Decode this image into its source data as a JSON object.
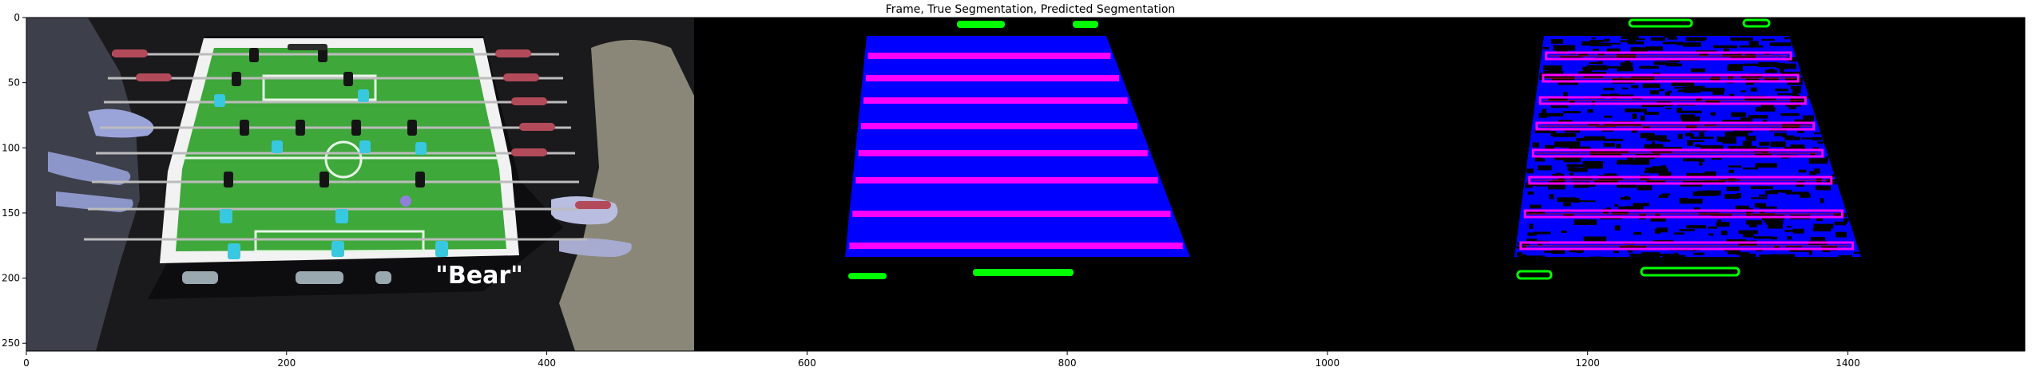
{
  "figure": {
    "title": "Frame, True Segmentation, Predicted Segmentation",
    "x_ticks": [
      0,
      200,
      400,
      600,
      800,
      1000,
      1200,
      1400
    ],
    "y_ticks": [
      0,
      50,
      100,
      150,
      200,
      250
    ],
    "x_range": [
      0,
      1536
    ],
    "y_range": [
      0,
      256
    ],
    "panels": {
      "frame": {
        "label_text": "\"Bear\""
      }
    },
    "colors": {
      "background": "#000000",
      "table_class": "#0000ff",
      "rod_class": "#ff00ff",
      "ball_class": "#00ff00",
      "field": "#3ea83a",
      "frame_border": "#f2f2f2"
    }
  }
}
